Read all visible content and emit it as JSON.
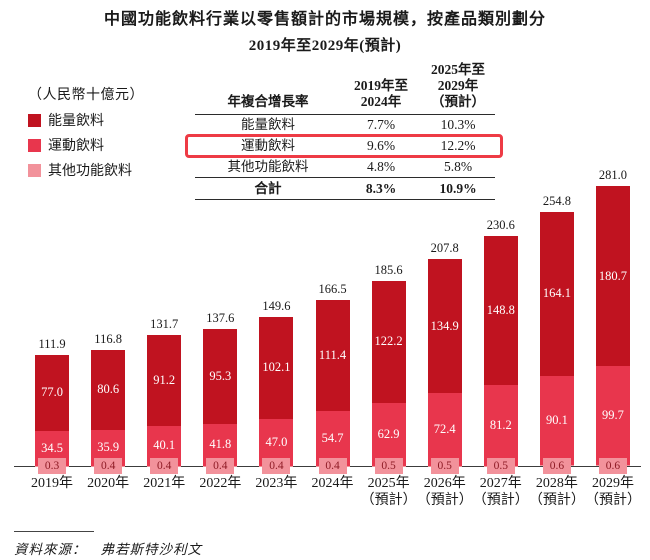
{
  "title": {
    "line1": "中國功能飲料行業以零售額計的市場規模，按產品類別劃分",
    "line2": "2019年至2029年(預計)"
  },
  "legend": {
    "unit_label": "（人民幣十億元）"
  },
  "cagr_table": {
    "metric_header": "年複合增長率",
    "period1_lines": [
      "2019年至",
      "2024年"
    ],
    "period2_lines": [
      "2025年至",
      "2029年",
      "（預計）"
    ],
    "rows": [
      {
        "label": "能量飲料",
        "p1": "7.7%",
        "p2": "10.3%",
        "highlighted": false
      },
      {
        "label": "運動飲料",
        "p1": "9.6%",
        "p2": "12.2%",
        "highlighted": true
      },
      {
        "label": "其他功能飲料",
        "p1": "4.8%",
        "p2": "5.8%",
        "highlighted": false
      }
    ],
    "total_row": {
      "label": "合計",
      "p1": "8.3%",
      "p2": "10.9%"
    }
  },
  "chart_data": {
    "type": "bar",
    "stacked": true,
    "title": "中國功能飲料行業以零售額計的市場規模，按產品類別劃分",
    "subtitle": "2019年至2029年(預計)",
    "unit": "人民幣十億元",
    "grid": false,
    "legend_position": "left",
    "ylim": [
      0,
      281
    ],
    "categories": [
      {
        "year": "2019年"
      },
      {
        "year": "2020年"
      },
      {
        "year": "2021年"
      },
      {
        "year": "2022年"
      },
      {
        "year": "2023年"
      },
      {
        "year": "2024年"
      },
      {
        "year": "2025年",
        "note": "（預計）"
      },
      {
        "year": "2026年",
        "note": "（預計）"
      },
      {
        "year": "2027年",
        "note": "（預計）"
      },
      {
        "year": "2028年",
        "note": "（預計）"
      },
      {
        "year": "2029年",
        "note": "（預計）"
      }
    ],
    "series": [
      {
        "name": "能量飲料",
        "color": "#c01320",
        "values": [
          "77.0",
          "80.6",
          "91.2",
          "95.3",
          "102.1",
          "111.4",
          "122.2",
          "134.9",
          "148.8",
          "164.1",
          "180.7"
        ]
      },
      {
        "name": "運動飲料",
        "color": "#e8364d",
        "values": [
          "34.5",
          "35.9",
          "40.1",
          "41.8",
          "47.0",
          "54.7",
          "62.9",
          "72.4",
          "81.2",
          "90.1",
          "99.7"
        ]
      },
      {
        "name": "其他功能飲料",
        "color": "#f2929b",
        "values": [
          "0.3",
          "0.4",
          "0.4",
          "0.4",
          "0.4",
          "0.4",
          "0.5",
          "0.5",
          "0.5",
          "0.6",
          "0.6"
        ]
      }
    ],
    "totals": [
      "111.9",
      "116.8",
      "131.7",
      "137.6",
      "149.6",
      "166.5",
      "185.6",
      "207.8",
      "230.6",
      "254.8",
      "281.0"
    ]
  },
  "footer": {
    "source_label": "資料來源：",
    "source_value": "弗若斯特沙利文"
  }
}
